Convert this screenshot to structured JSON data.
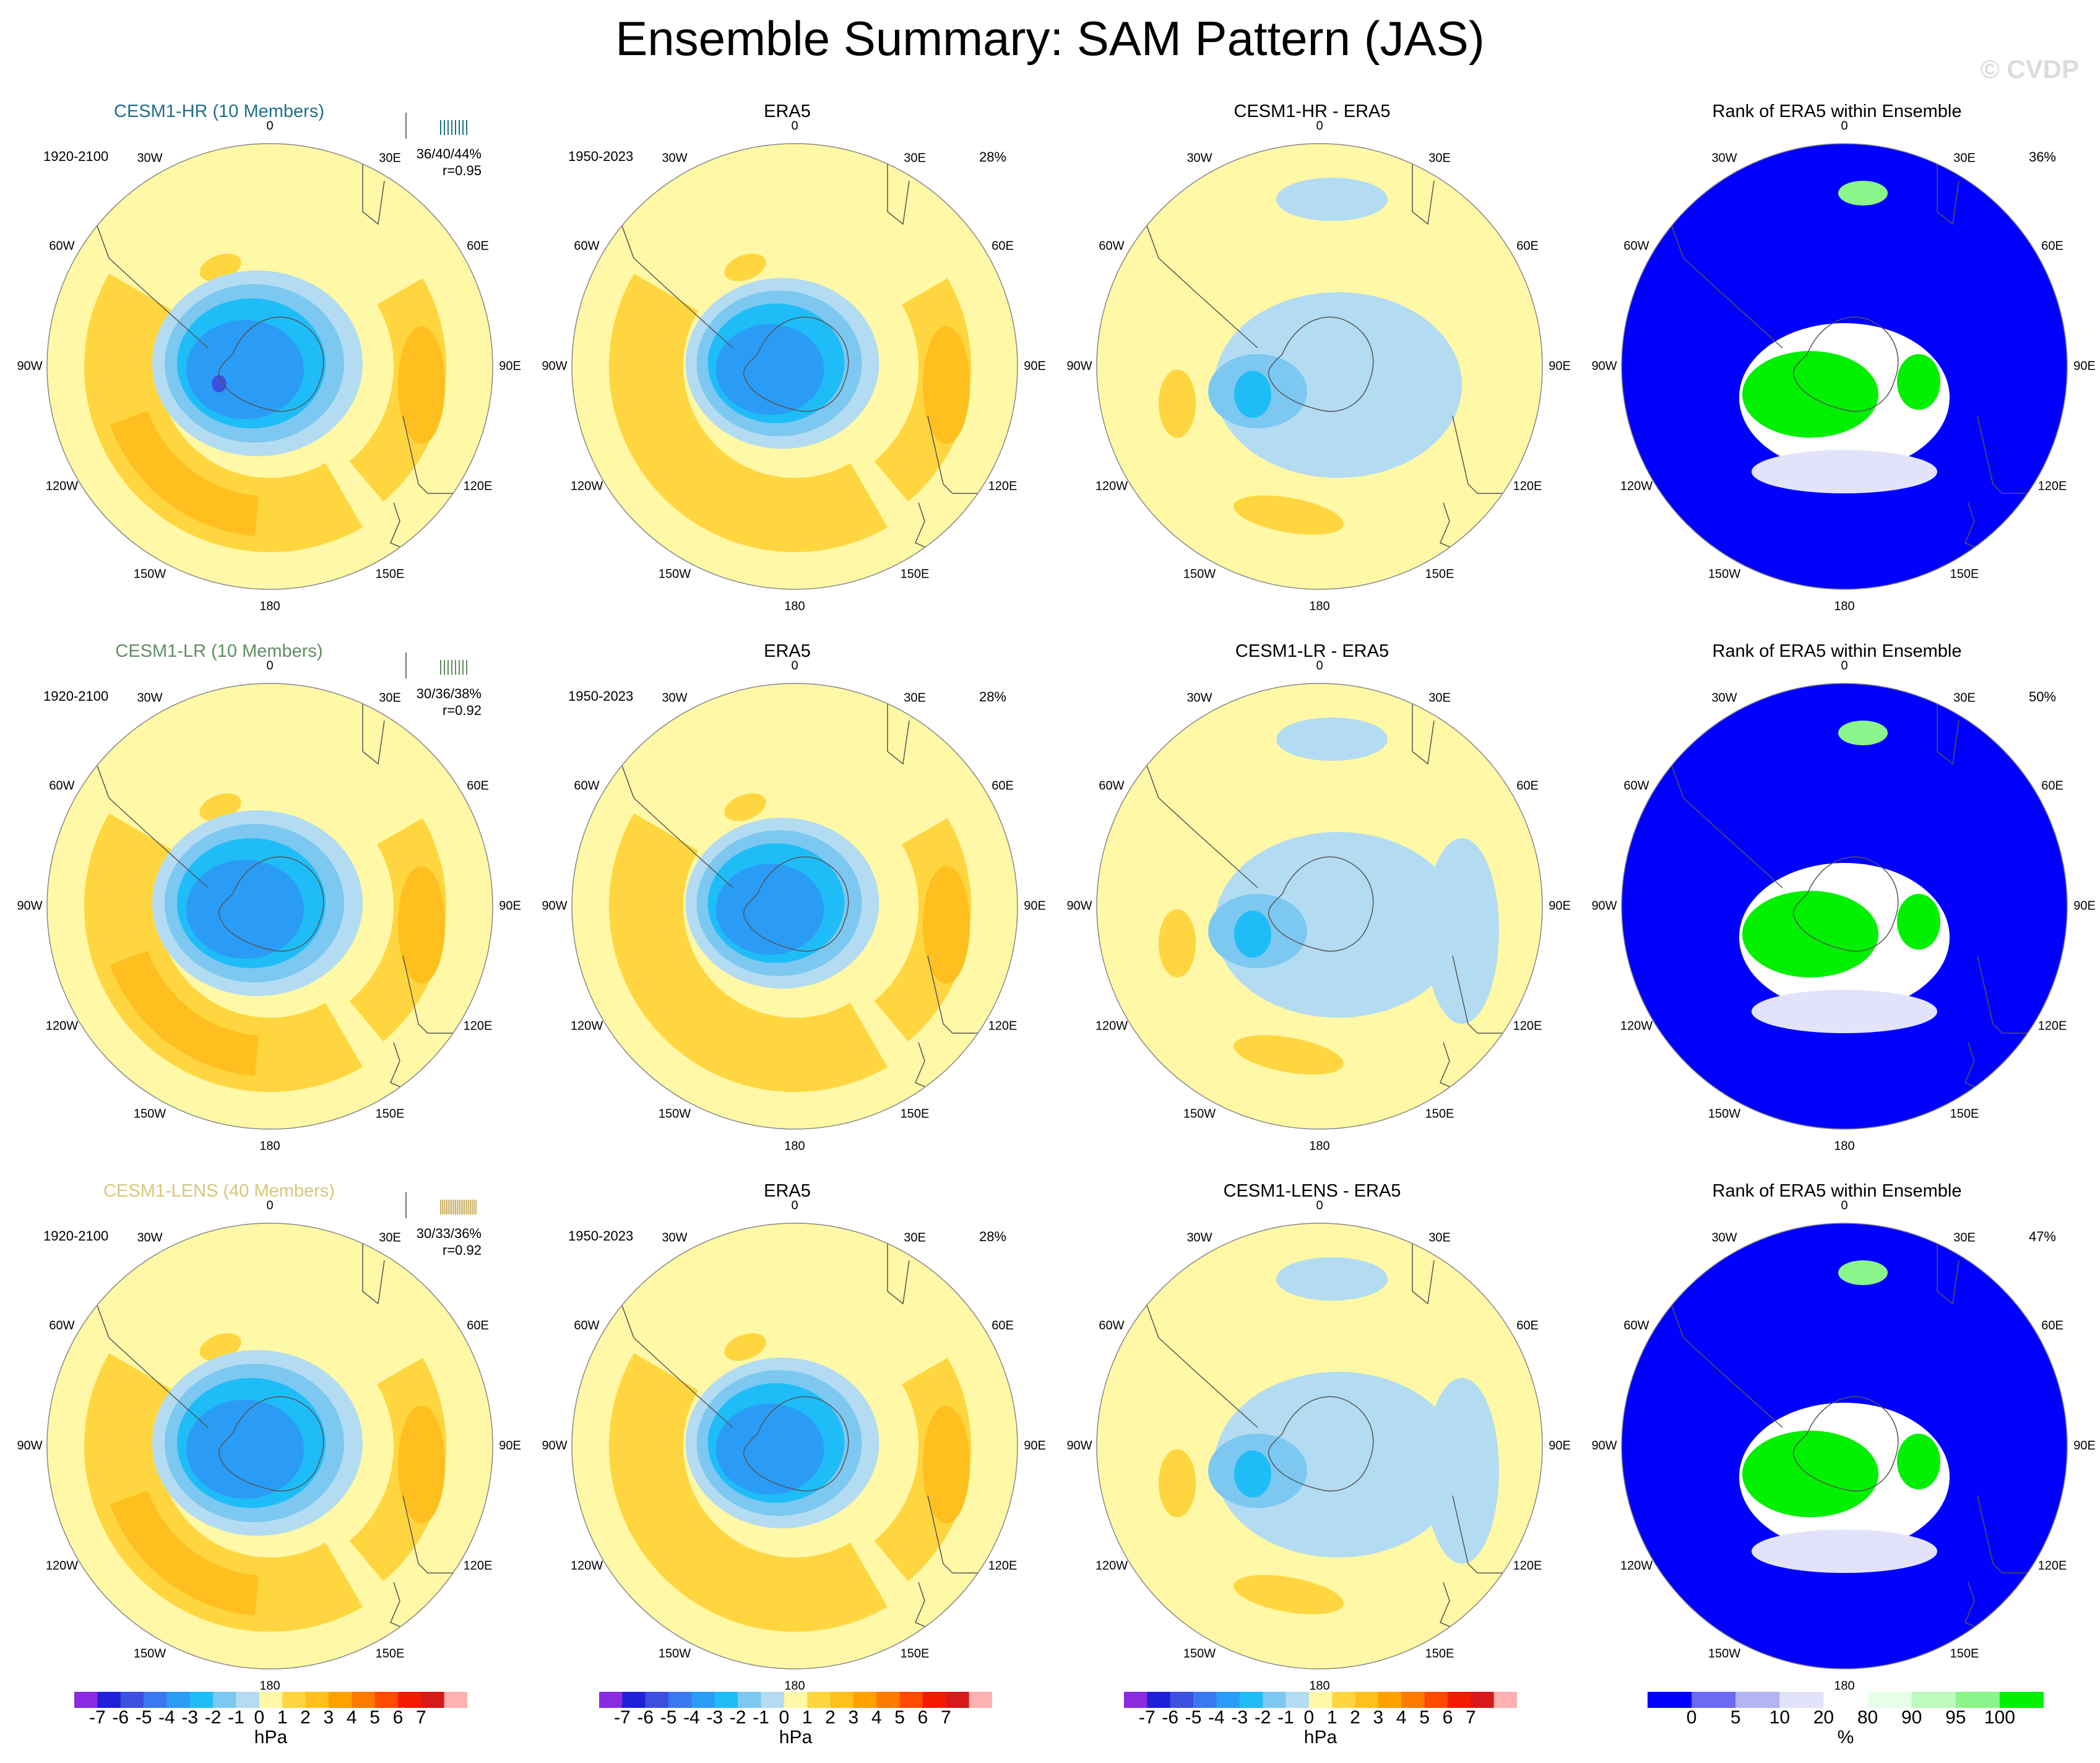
{
  "title": "Ensemble Summary: SAM Pattern (JAS)",
  "watermark": "© CVDP",
  "longitude_labels": [
    "0",
    "30E",
    "60E",
    "90E",
    "120E",
    "150E",
    "180",
    "150W",
    "120W",
    "90W",
    "60W",
    "30W"
  ],
  "rows": [
    {
      "model": {
        "title": "CESM1-HR (10 Members)",
        "title_color": "#1f6f8b",
        "period": "1920-2100",
        "pct_line": "36/40/44%",
        "corr_line": "r=0.95",
        "spark_color": "#1f6f8b"
      },
      "obs": {
        "title": "ERA5",
        "period": "1950-2023",
        "pct": "28%"
      },
      "diff": {
        "title": "CESM1-HR - ERA5"
      },
      "rank": {
        "title": "Rank of ERA5 within Ensemble",
        "pct": "36%"
      }
    },
    {
      "model": {
        "title": "CESM1-LR (10 Members)",
        "title_color": "#5f8f5f",
        "period": "1920-2100",
        "pct_line": "30/36/38%",
        "corr_line": "r=0.92",
        "spark_color": "#5f8f5f"
      },
      "obs": {
        "title": "ERA5",
        "period": "1950-2023",
        "pct": "28%"
      },
      "diff": {
        "title": "CESM1-LR - ERA5"
      },
      "rank": {
        "title": "Rank of ERA5 within Ensemble",
        "pct": "50%"
      }
    },
    {
      "model": {
        "title": "CESM1-LENS (40 Members)",
        "title_color": "#d8c77a",
        "period": "1920-2100",
        "pct_line": "30/33/36%",
        "corr_line": "r=0.92",
        "spark_color": "#cbb26a"
      },
      "obs": {
        "title": "ERA5",
        "period": "1950-2023",
        "pct": "28%"
      },
      "diff": {
        "title": "CESM1-LENS - ERA5"
      },
      "rank": {
        "title": "Rank of ERA5 within Ensemble",
        "pct": "47%"
      }
    }
  ],
  "hpa_colorbar": {
    "colors": [
      "#8a2be2",
      "#2020d8",
      "#3c50e0",
      "#3a78f0",
      "#2a9cf6",
      "#1fbdf8",
      "#7cc8f0",
      "#b3dcf2",
      "#fff8a6",
      "#ffd640",
      "#ffbf1e",
      "#ffa000",
      "#ff7a00",
      "#ff4a00",
      "#f21b00",
      "#d61a1a",
      "#ffb0b0"
    ],
    "labels": [
      "-7",
      "-6",
      "-5",
      "-4",
      "-3",
      "-2",
      "-1",
      "0",
      "1",
      "2",
      "3",
      "4",
      "5",
      "6",
      "7"
    ],
    "unit": "hPa"
  },
  "rank_colorbar": {
    "colors": [
      "#0000ff",
      "#6a6af2",
      "#b4b4f2",
      "#e2e2fa",
      "#ffffff",
      "#e6ffe6",
      "#bdfabd",
      "#8af58a",
      "#00f000"
    ],
    "labels": [
      "0",
      "5",
      "10",
      "20",
      "80",
      "90",
      "95",
      "100"
    ],
    "unit": "%"
  }
}
